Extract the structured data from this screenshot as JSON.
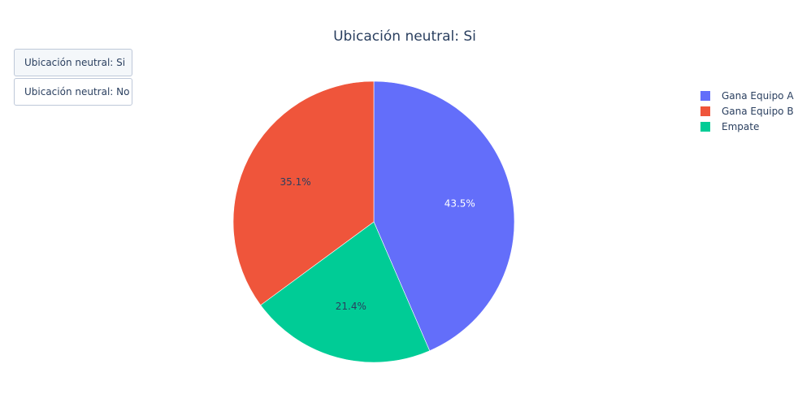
{
  "chart_data": {
    "type": "pie",
    "title": "Ubicación neutral: Si",
    "categories": [
      "Gana Equipo A",
      "Gana Equipo B",
      "Empate"
    ],
    "values": [
      43.5,
      35.1,
      21.4
    ],
    "labels": [
      "43.5%",
      "35.1%",
      "21.4%"
    ],
    "colors": [
      "#636efa",
      "#ef553b",
      "#00cc96"
    ],
    "label_colors": [
      "#ffffff",
      "#2a3f5f",
      "#2a3f5f"
    ],
    "slice_order": [
      0,
      2,
      1
    ],
    "direction": "clockwise",
    "legend_position": "top-right"
  },
  "menu": {
    "buttons": [
      {
        "label": "Ubicación neutral: Si",
        "active": true
      },
      {
        "label": "Ubicación neutral: No",
        "active": false
      }
    ]
  }
}
